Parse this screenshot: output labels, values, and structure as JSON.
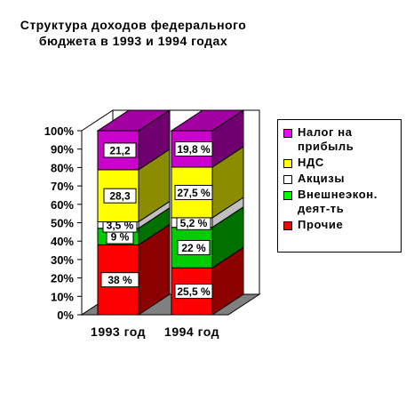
{
  "title_lines": [
    "Структура доходов федерального",
    "бюджета в 1993 и 1994 годах"
  ],
  "chart_data": {
    "type": "bar",
    "stacked": true,
    "categories": [
      "1993 год",
      "1994 год"
    ],
    "ylim": [
      0,
      100
    ],
    "yticks": [
      "0%",
      "10%",
      "20%",
      "30%",
      "40%",
      "50%",
      "60%",
      "70%",
      "80%",
      "90%",
      "100%"
    ],
    "series": [
      {
        "name": "Прочие",
        "color": "#ff0000",
        "values": [
          38,
          25.5
        ],
        "labels": [
          "38 %",
          "25,5 %"
        ]
      },
      {
        "name": "Внешнеэкон. деят-ть",
        "color": "#00cc00",
        "values": [
          9,
          22
        ],
        "labels": [
          "9 %",
          "22 %"
        ]
      },
      {
        "name": "Акцизы",
        "color": "#ffffff",
        "values": [
          3.5,
          5.2
        ],
        "labels": [
          "3,5 %",
          "5,2 %"
        ]
      },
      {
        "name": "НДС",
        "color": "#ffff00",
        "values": [
          28.3,
          27.5
        ],
        "labels": [
          "28,3",
          "27,5 %"
        ]
      },
      {
        "name": "Налог на прибыль",
        "color": "#cc00cc",
        "values": [
          21.2,
          19.8
        ],
        "labels": [
          "21,2",
          "19,8 %"
        ]
      }
    ],
    "legend_position": "right",
    "grid": false
  },
  "legend": [
    {
      "label": "Налог на\nприбыль",
      "color": "#ff00ff"
    },
    {
      "label": "НДС",
      "color": "#ffff00"
    },
    {
      "label": "Акцизы",
      "color": "#ffffff"
    },
    {
      "label": "Внешнеэкон.\nдеят-ть",
      "color": "#00ff00"
    },
    {
      "label": "Прочие",
      "color": "#ff0000"
    }
  ]
}
